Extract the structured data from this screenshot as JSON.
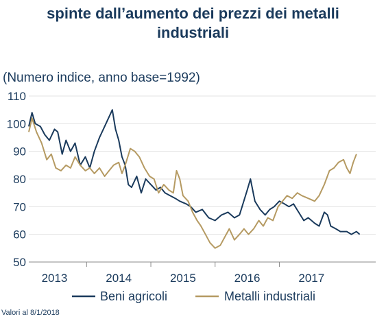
{
  "header": {
    "title_line1": "spinte dall’aumento dei prezzi dei metalli",
    "title_line2": "industriali"
  },
  "footnote": "Valori al 8/1/2018",
  "chart_data": {
    "type": "line",
    "title": "spinte dall’aumento dei prezzi dei metalli industriali",
    "subtitle": "(Numero indice, anno base=1992)",
    "xlabel": "",
    "ylabel": "",
    "xlim": [
      2012.6,
      2018.0
    ],
    "ylim": [
      50,
      110
    ],
    "x_ticks": [
      "2013",
      "2014",
      "2015",
      "2016",
      "2017"
    ],
    "y_ticks": [
      50,
      60,
      70,
      80,
      90,
      100,
      110
    ],
    "grid": true,
    "legend": "bottom",
    "series": [
      {
        "name": "Beni agricoli",
        "color": "#1a3a5c",
        "points": [
          [
            2012.6,
            99
          ],
          [
            2012.65,
            104
          ],
          [
            2012.7,
            100
          ],
          [
            2012.78,
            99
          ],
          [
            2012.85,
            96
          ],
          [
            2012.92,
            94
          ],
          [
            2013.0,
            98
          ],
          [
            2013.05,
            97
          ],
          [
            2013.12,
            89
          ],
          [
            2013.18,
            94
          ],
          [
            2013.25,
            90
          ],
          [
            2013.32,
            93
          ],
          [
            2013.4,
            85
          ],
          [
            2013.48,
            88
          ],
          [
            2013.55,
            84
          ],
          [
            2013.62,
            90
          ],
          [
            2013.7,
            95
          ],
          [
            2013.78,
            99
          ],
          [
            2013.86,
            103
          ],
          [
            2013.9,
            105
          ],
          [
            2013.95,
            98
          ],
          [
            2014.0,
            94
          ],
          [
            2014.05,
            88
          ],
          [
            2014.1,
            85
          ],
          [
            2014.15,
            78
          ],
          [
            2014.2,
            77
          ],
          [
            2014.28,
            81
          ],
          [
            2014.35,
            75
          ],
          [
            2014.42,
            80
          ],
          [
            2014.5,
            78
          ],
          [
            2014.58,
            76
          ],
          [
            2014.65,
            77
          ],
          [
            2014.72,
            75
          ],
          [
            2014.8,
            74
          ],
          [
            2014.88,
            73
          ],
          [
            2014.95,
            72
          ],
          [
            2015.05,
            71
          ],
          [
            2015.12,
            70
          ],
          [
            2015.2,
            68
          ],
          [
            2015.3,
            69
          ],
          [
            2015.4,
            66
          ],
          [
            2015.5,
            65
          ],
          [
            2015.6,
            67
          ],
          [
            2015.7,
            68
          ],
          [
            2015.8,
            66
          ],
          [
            2015.88,
            67
          ],
          [
            2015.92,
            70
          ],
          [
            2016.0,
            76
          ],
          [
            2016.05,
            80
          ],
          [
            2016.12,
            72
          ],
          [
            2016.2,
            69
          ],
          [
            2016.28,
            67
          ],
          [
            2016.35,
            69
          ],
          [
            2016.42,
            70
          ],
          [
            2016.5,
            72
          ],
          [
            2016.58,
            71
          ],
          [
            2016.65,
            70
          ],
          [
            2016.72,
            71
          ],
          [
            2016.8,
            68
          ],
          [
            2016.88,
            65
          ],
          [
            2016.95,
            66
          ],
          [
            2017.05,
            64
          ],
          [
            2017.12,
            63
          ],
          [
            2017.2,
            68
          ],
          [
            2017.25,
            67
          ],
          [
            2017.3,
            63
          ],
          [
            2017.38,
            62
          ],
          [
            2017.45,
            61
          ],
          [
            2017.55,
            61
          ],
          [
            2017.62,
            60
          ],
          [
            2017.7,
            61
          ],
          [
            2017.75,
            60
          ]
        ]
      },
      {
        "name": "Metalli industriali",
        "color": "#b59a62",
        "points": [
          [
            2012.6,
            97
          ],
          [
            2012.65,
            102
          ],
          [
            2012.72,
            97
          ],
          [
            2012.8,
            93
          ],
          [
            2012.88,
            87
          ],
          [
            2012.95,
            89
          ],
          [
            2013.02,
            84
          ],
          [
            2013.1,
            83
          ],
          [
            2013.18,
            85
          ],
          [
            2013.25,
            84
          ],
          [
            2013.32,
            88
          ],
          [
            2013.4,
            85
          ],
          [
            2013.48,
            83
          ],
          [
            2013.55,
            84
          ],
          [
            2013.62,
            82
          ],
          [
            2013.7,
            84
          ],
          [
            2013.78,
            81
          ],
          [
            2013.85,
            83
          ],
          [
            2013.92,
            85
          ],
          [
            2014.0,
            86
          ],
          [
            2014.05,
            82
          ],
          [
            2014.1,
            85
          ],
          [
            2014.18,
            91
          ],
          [
            2014.25,
            90
          ],
          [
            2014.32,
            88
          ],
          [
            2014.4,
            84
          ],
          [
            2014.48,
            81
          ],
          [
            2014.55,
            80
          ],
          [
            2014.62,
            75
          ],
          [
            2014.7,
            78
          ],
          [
            2014.78,
            76
          ],
          [
            2014.85,
            75
          ],
          [
            2014.9,
            83
          ],
          [
            2014.95,
            80
          ],
          [
            2015.0,
            74
          ],
          [
            2015.08,
            72
          ],
          [
            2015.15,
            68
          ],
          [
            2015.22,
            65
          ],
          [
            2015.28,
            63
          ],
          [
            2015.35,
            60
          ],
          [
            2015.42,
            57
          ],
          [
            2015.5,
            55
          ],
          [
            2015.58,
            56
          ],
          [
            2015.65,
            59
          ],
          [
            2015.72,
            62
          ],
          [
            2015.8,
            58
          ],
          [
            2015.88,
            60
          ],
          [
            2015.95,
            62
          ],
          [
            2016.02,
            60
          ],
          [
            2016.1,
            62
          ],
          [
            2016.18,
            65
          ],
          [
            2016.25,
            63
          ],
          [
            2016.32,
            66
          ],
          [
            2016.4,
            65
          ],
          [
            2016.48,
            70
          ],
          [
            2016.55,
            72
          ],
          [
            2016.62,
            74
          ],
          [
            2016.7,
            73
          ],
          [
            2016.78,
            75
          ],
          [
            2016.85,
            74
          ],
          [
            2016.95,
            73
          ],
          [
            2017.05,
            72
          ],
          [
            2017.12,
            74
          ],
          [
            2017.2,
            78
          ],
          [
            2017.28,
            83
          ],
          [
            2017.35,
            84
          ],
          [
            2017.42,
            86
          ],
          [
            2017.5,
            87
          ],
          [
            2017.55,
            84
          ],
          [
            2017.6,
            82
          ],
          [
            2017.65,
            86
          ],
          [
            2017.7,
            89
          ]
        ]
      }
    ]
  }
}
